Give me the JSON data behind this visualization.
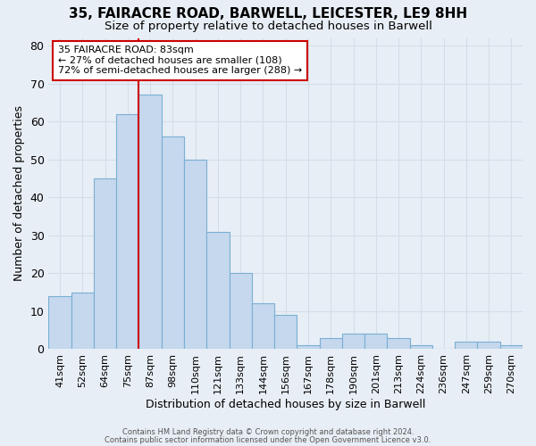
{
  "title_line1": "35, FAIRACRE ROAD, BARWELL, LEICESTER, LE9 8HH",
  "title_line2": "Size of property relative to detached houses in Barwell",
  "xlabel": "Distribution of detached houses by size in Barwell",
  "ylabel": "Number of detached properties",
  "bin_labels": [
    "41sqm",
    "52sqm",
    "64sqm",
    "75sqm",
    "87sqm",
    "98sqm",
    "110sqm",
    "121sqm",
    "133sqm",
    "144sqm",
    "156sqm",
    "167sqm",
    "178sqm",
    "190sqm",
    "201sqm",
    "213sqm",
    "224sqm",
    "236sqm",
    "247sqm",
    "259sqm",
    "270sqm"
  ],
  "bar_heights": [
    14,
    15,
    45,
    62,
    67,
    56,
    50,
    31,
    20,
    12,
    9,
    1,
    3,
    4,
    4,
    3,
    1,
    0,
    2,
    2,
    1
  ],
  "bar_color": "#c5d8ed",
  "bar_edge_color": "#7aafd4",
  "vline_color": "#cc0000",
  "vline_x_index": 4,
  "annotation_text": "35 FAIRACRE ROAD: 83sqm\n← 27% of detached houses are smaller (108)\n72% of semi-detached houses are larger (288) →",
  "annotation_box_color": "#ffffff",
  "annotation_box_edge_color": "#cc0000",
  "ylim": [
    0,
    82
  ],
  "yticks": [
    0,
    10,
    20,
    30,
    40,
    50,
    60,
    70,
    80
  ],
  "grid_color": "#d4dde8",
  "bg_color": "#e8eef5",
  "footer_line1": "Contains HM Land Registry data © Crown copyright and database right 2024.",
  "footer_line2": "Contains public sector information licensed under the Open Government Licence v3.0."
}
